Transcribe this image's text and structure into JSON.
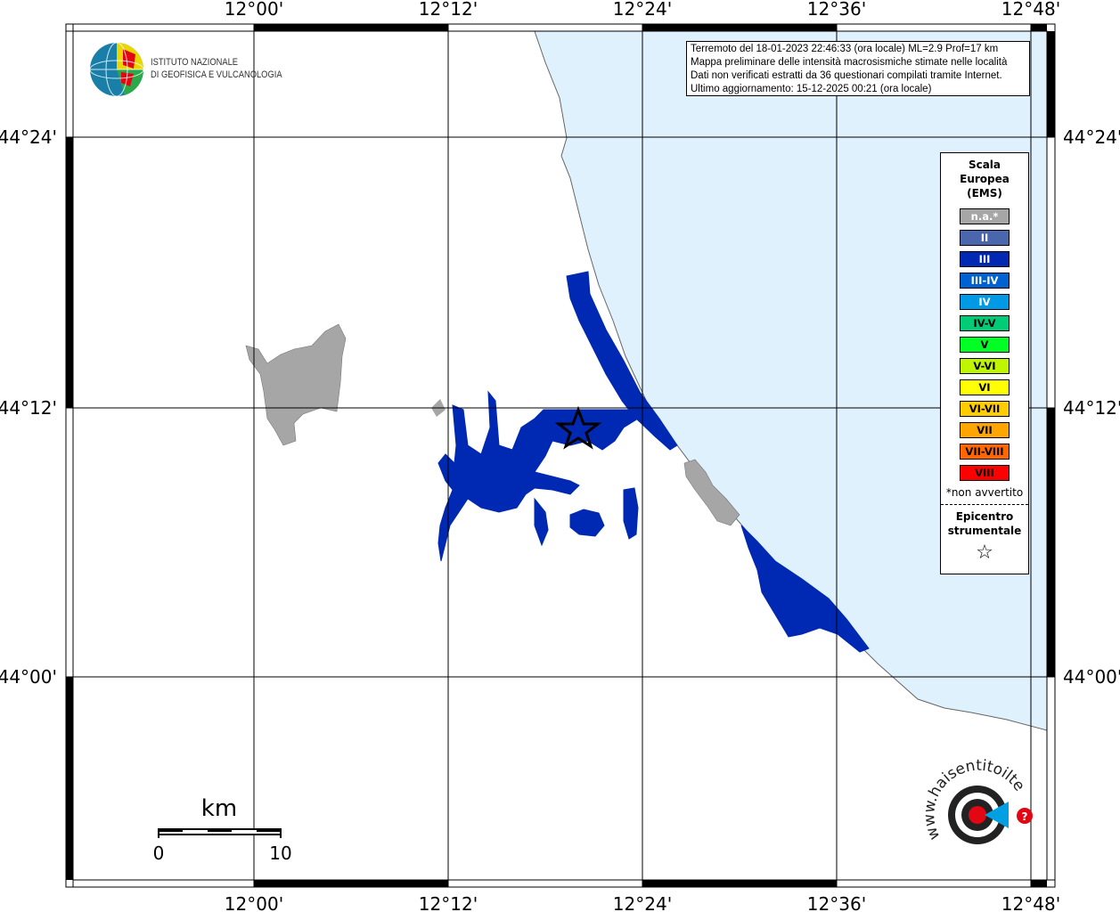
{
  "map": {
    "lon_ticks": [
      "12°00'",
      "12°12'",
      "12°24'",
      "12°36'",
      "12°48'"
    ],
    "lat_ticks": [
      "44°24'",
      "44°12'",
      "44°00'"
    ],
    "colors": {
      "sea": "#dff1fd",
      "land": "#ffffff",
      "not_felt": "#a6a6a6",
      "intensity_III": "#0029b3"
    }
  },
  "info": {
    "lines": [
      "Terremoto del 18-01-2023 22:46:33 (ora locale) ML=2.9 Prof=17 km",
      "Mappa preliminare delle intensità macrosismiche stimate nelle località",
      "Dati non verificati estratti da 36 questionari compilati tramite Internet.",
      "Ultimo aggiornamento: 15-12-2025 00:21 (ora locale)"
    ]
  },
  "logo": {
    "line1": "ISTITUTO NAZIONALE",
    "line2": "DI GEOFISICA E VULCANOLOGIA"
  },
  "legend": {
    "title": [
      "Scala",
      "Europea",
      "(EMS)"
    ],
    "items": [
      {
        "label": "n.a.*",
        "color": "#a6a6a6",
        "text_color": "#ffffff"
      },
      {
        "label": "II",
        "color": "#4a66ad",
        "text_color": "#ffffff"
      },
      {
        "label": "III",
        "color": "#0029b3",
        "text_color": "#ffffff"
      },
      {
        "label": "III-IV",
        "color": "#0062d0",
        "text_color": "#ffffff"
      },
      {
        "label": "IV",
        "color": "#0099e6",
        "text_color": "#ffffff"
      },
      {
        "label": "IV-V",
        "color": "#00cc77",
        "text_color": "#000000"
      },
      {
        "label": "V",
        "color": "#00ff22",
        "text_color": "#000000"
      },
      {
        "label": "V-VI",
        "color": "#c0f500",
        "text_color": "#000000"
      },
      {
        "label": "VI",
        "color": "#ffff00",
        "text_color": "#000000"
      },
      {
        "label": "VI-VII",
        "color": "#ffcc00",
        "text_color": "#000000"
      },
      {
        "label": "VII",
        "color": "#ffa500",
        "text_color": "#000000"
      },
      {
        "label": "VII-VIII",
        "color": "#ff6600",
        "text_color": "#000000"
      },
      {
        "label": "VIII",
        "color": "#ff0000",
        "text_color": "#000000"
      }
    ],
    "note": "*non avvertito",
    "epicenter": [
      "Epicentro",
      "strumentale"
    ],
    "epicenter_icon": "star-outline"
  },
  "scalebar": {
    "unit": "km",
    "start": "0",
    "end": "10"
  },
  "haisentito_logo": {
    "text": "www.haisentitoilterremoto.it"
  }
}
